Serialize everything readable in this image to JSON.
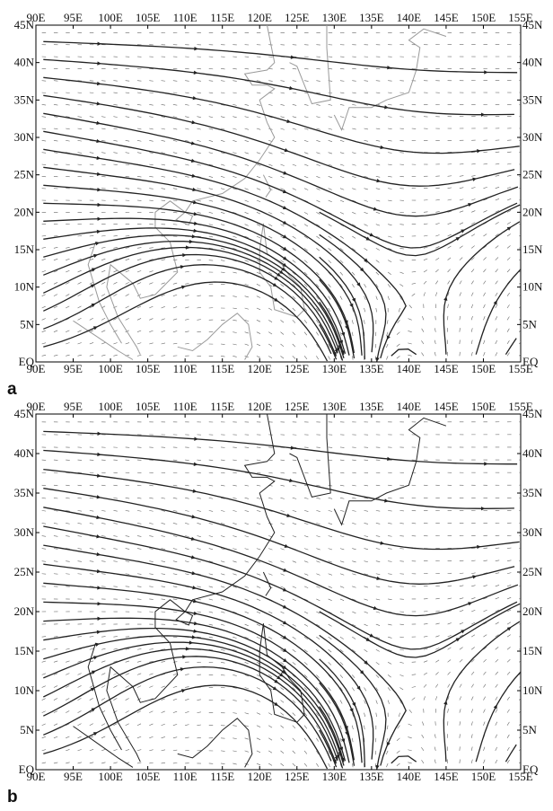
{
  "panels": [
    {
      "id": "a",
      "label": "a",
      "lon_ticks": [
        "90E",
        "95E",
        "100E",
        "105E",
        "110E",
        "115E",
        "120E",
        "125E",
        "130E",
        "135E",
        "140E",
        "145E",
        "150E",
        "155E"
      ],
      "lat_ticks": [
        "45N",
        "40N",
        "35N",
        "30N",
        "25N",
        "20N",
        "15N",
        "10N",
        "5N",
        "EQ"
      ],
      "lon_range": [
        90,
        155
      ],
      "lat_range": [
        0,
        45
      ],
      "coast_color": "#9a9a9a",
      "stream_color": "#222222"
    },
    {
      "id": "b",
      "label": "b",
      "lon_ticks": [
        "90E",
        "95E",
        "100E",
        "105E",
        "110E",
        "115E",
        "120E",
        "125E",
        "130E",
        "135E",
        "140E",
        "145E",
        "150E",
        "155E"
      ],
      "lat_ticks": [
        "45N",
        "40N",
        "35N",
        "30N",
        "25N",
        "20N",
        "15N",
        "10N",
        "5N",
        "EQ"
      ],
      "lon_range": [
        90,
        155
      ],
      "lat_range": [
        0,
        45
      ],
      "coast_color": "#222222",
      "stream_color": "#222222"
    }
  ]
}
